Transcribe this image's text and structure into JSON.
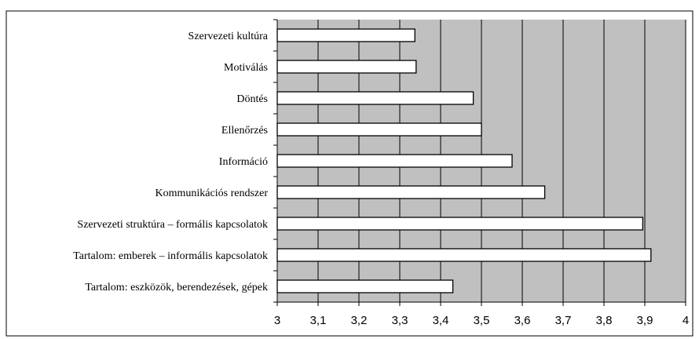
{
  "chart_data": {
    "type": "bar",
    "orientation": "horizontal",
    "categories": [
      "Szervezeti kultúra",
      "Motiválás",
      "Döntés",
      "Ellenőrzés",
      "Információ",
      "Kommunikációs rendszer",
      "Szervezeti struktúra – formális kapcsolatok",
      "Tartalom: emberek – informális kapcsolatok",
      "Tartalom: eszközök, berendezések, gépek"
    ],
    "values": [
      3.337,
      3.34,
      3.48,
      3.5,
      3.575,
      3.655,
      3.895,
      3.915,
      3.43
    ],
    "color": "#ffffff",
    "background": "#c0c0c0",
    "xlim": [
      3,
      4
    ],
    "xticks": [
      3,
      {
        "value": 3.1,
        "label": "3,1"
      },
      {
        "value": 3.2,
        "label": "3,2"
      },
      {
        "value": 3.3,
        "label": "3,3"
      },
      {
        "value": 3.4,
        "label": "3,4"
      },
      {
        "value": 3.5,
        "label": "3,5"
      },
      {
        "value": 3.6,
        "label": "3,6"
      },
      {
        "value": 3.7,
        "label": "3,7"
      },
      {
        "value": 3.8,
        "label": "3,8"
      },
      {
        "value": 3.9,
        "label": "3,9"
      },
      4
    ],
    "grid": true
  }
}
